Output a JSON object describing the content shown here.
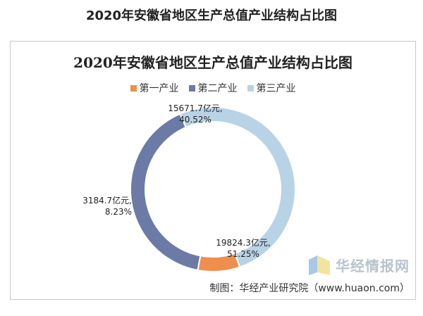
{
  "page_title": "2020年安徽省地区生产总值产业结构占比图",
  "chart_data": {
    "type": "pie",
    "style": "donut",
    "title": "2020年安徽省地区生产总值产业结构占比图",
    "legend_position": "top",
    "series": [
      {
        "name": "第一产业",
        "value": 3184.7,
        "percent": 8.23,
        "color": "#ee8f4d",
        "label_value": "3184.7亿元,",
        "label_percent": "8.23%"
      },
      {
        "name": "第二产业",
        "value": 15671.7,
        "percent": 40.52,
        "color": "#6b7ba6",
        "label_value": "15671.7亿元,",
        "label_percent": "40.52%"
      },
      {
        "name": "第三产业",
        "value": 19824.3,
        "percent": 51.25,
        "color": "#b9d3e6",
        "label_value": "19824.3亿元,",
        "label_percent": "51.25%"
      }
    ]
  },
  "watermark": {
    "text": "华经情报网",
    "sub_text": "huaon.com"
  },
  "source": "制图：华经产业研究院（www.huaon.com）"
}
